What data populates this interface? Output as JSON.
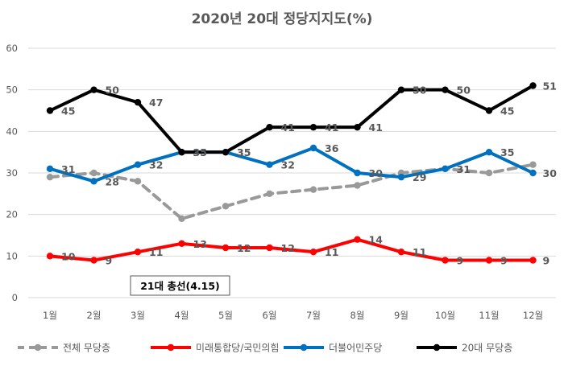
{
  "chart_data": {
    "type": "line",
    "title": "2020년 20대 정당지지도(%)",
    "categories": [
      "1월",
      "2월",
      "3월",
      "4월",
      "5월",
      "6월",
      "7월",
      "8월",
      "9월",
      "10월",
      "11월",
      "12월"
    ],
    "ylim": [
      0,
      60
    ],
    "yticks": [
      0,
      10,
      20,
      30,
      40,
      50,
      60
    ],
    "grid": true,
    "legend_position": "bottom",
    "annotation": "21대 총선(4.15)",
    "series": [
      {
        "name": "전체 무당층",
        "color": "#999999",
        "dashed": true,
        "show_labels": false,
        "values": [
          29,
          30,
          28,
          19,
          22,
          25,
          26,
          27,
          30,
          31,
          30,
          32
        ]
      },
      {
        "name": "미래통합당/국민의힘",
        "color": "#ff0000",
        "dashed": false,
        "show_labels": true,
        "values": [
          10,
          9,
          11,
          13,
          12,
          12,
          11,
          14,
          11,
          9,
          9,
          9
        ]
      },
      {
        "name": "더불어민주당",
        "color": "#0070c0",
        "dashed": false,
        "show_labels": true,
        "values": [
          31,
          28,
          32,
          35,
          35,
          32,
          36,
          30,
          29,
          31,
          35,
          30
        ]
      },
      {
        "name": "20대 무당층",
        "color": "#000000",
        "dashed": false,
        "show_labels": true,
        "values": [
          45,
          50,
          47,
          35,
          35,
          41,
          41,
          41,
          50,
          50,
          45,
          51
        ]
      }
    ]
  }
}
